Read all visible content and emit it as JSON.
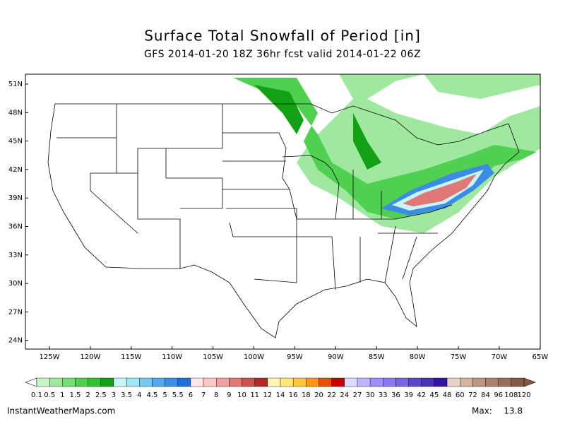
{
  "header": {
    "title": "Surface Total Snowfall of Period [in]",
    "subtitle": "GFS 2014-01-20 18Z 36hr fcst valid 2014-01-22 06Z"
  },
  "map": {
    "lat_labels": [
      "51N",
      "48N",
      "45N",
      "42N",
      "39N",
      "36N",
      "33N",
      "30N",
      "27N",
      "24N"
    ],
    "lon_labels": [
      "125W",
      "120W",
      "115W",
      "110W",
      "105W",
      "100W",
      "95W",
      "90W",
      "85W",
      "80W",
      "75W",
      "70W",
      "65W"
    ]
  },
  "colorbar": {
    "labels": [
      0.1,
      0.5,
      1,
      1.5,
      2,
      2.5,
      3,
      3.5,
      4,
      4.5,
      5,
      5.5,
      6,
      7,
      8,
      9,
      10,
      11,
      12,
      14,
      16,
      18,
      20,
      22,
      24,
      27,
      30,
      33,
      36,
      39,
      42,
      45,
      48,
      60,
      72,
      84,
      96,
      108,
      120
    ],
    "colors": [
      "#c8f5c8",
      "#a0e8a0",
      "#78dc78",
      "#50d050",
      "#32c032",
      "#14a014",
      "#c8f5f5",
      "#a0e6f5",
      "#78c8f0",
      "#50aaeb",
      "#3c8ce6",
      "#1e6edc",
      "#ffe6e6",
      "#ffc8c8",
      "#f0a0a0",
      "#e07878",
      "#c85050",
      "#b42828",
      "#fff5b4",
      "#ffe678",
      "#ffc83c",
      "#ff9614",
      "#e65000",
      "#c80000",
      "#dcdcff",
      "#c0b4ff",
      "#a08cff",
      "#8c78f0",
      "#7864dc",
      "#5a46c8",
      "#4632b4",
      "#3214a0",
      "#e6d2c8",
      "#d2b4a0",
      "#be9682",
      "#aa8270",
      "#966e5a",
      "#825a46"
    ]
  },
  "footer": {
    "site": "InstantWeatherMaps.com",
    "max_label": "Max:",
    "max_value": 13.8
  }
}
